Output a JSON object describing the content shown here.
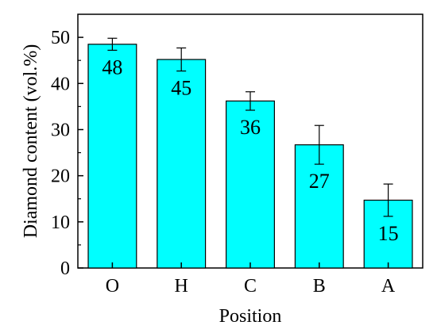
{
  "chart_data": {
    "type": "bar",
    "xlabel": "Position",
    "ylabel": "Diamond content (vol.%)",
    "ylim": [
      0,
      55
    ],
    "yticks": [
      0,
      10,
      20,
      30,
      40,
      50
    ],
    "categories": [
      "O",
      "H",
      "C",
      "B",
      "A"
    ],
    "values": [
      48.5,
      45.2,
      36.2,
      26.7,
      14.7
    ],
    "value_labels": [
      "48",
      "45",
      "36",
      "27",
      "15"
    ],
    "error": [
      1.3,
      2.5,
      2.0,
      4.2,
      3.5
    ],
    "bar_color": "#00ffff",
    "edge_color": "#000000",
    "grid": false,
    "legend": "none"
  }
}
